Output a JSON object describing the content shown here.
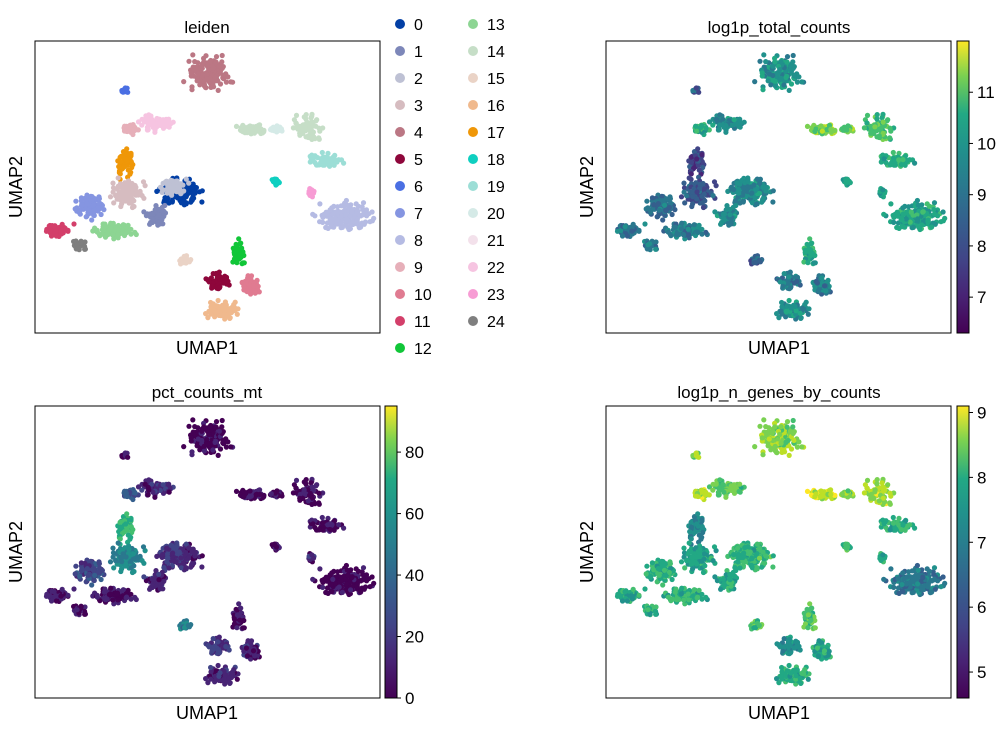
{
  "chart_data": [
    {
      "type": "scatter",
      "title": "leiden",
      "xlabel": "UMAP1",
      "ylabel": "UMAP2",
      "legend_position": "right",
      "legend": [
        {
          "label": "0",
          "color": "#023fa5"
        },
        {
          "label": "1",
          "color": "#7d87b9"
        },
        {
          "label": "2",
          "color": "#bec1d4"
        },
        {
          "label": "3",
          "color": "#d6bcc0"
        },
        {
          "label": "4",
          "color": "#bb7784"
        },
        {
          "label": "5",
          "color": "#8e063b"
        },
        {
          "label": "6",
          "color": "#4a6fe3"
        },
        {
          "label": "7",
          "color": "#8595e1"
        },
        {
          "label": "8",
          "color": "#b5bbe3"
        },
        {
          "label": "9",
          "color": "#e6afb9"
        },
        {
          "label": "10",
          "color": "#e07b91"
        },
        {
          "label": "11",
          "color": "#d33f6a"
        },
        {
          "label": "12",
          "color": "#11c638"
        },
        {
          "label": "13",
          "color": "#8dd593"
        },
        {
          "label": "14",
          "color": "#c6dec7"
        },
        {
          "label": "15",
          "color": "#ead3c6"
        },
        {
          "label": "16",
          "color": "#f0b98d"
        },
        {
          "label": "17",
          "color": "#ef9708"
        },
        {
          "label": "18",
          "color": "#0fcfc0"
        },
        {
          "label": "19",
          "color": "#9cded6"
        },
        {
          "label": "20",
          "color": "#d5eae7"
        },
        {
          "label": "21",
          "color": "#f3e1eb"
        },
        {
          "label": "22",
          "color": "#f6c4e1"
        },
        {
          "label": "23",
          "color": "#f79cd4"
        },
        {
          "label": "24",
          "color": "#7f7f7f"
        }
      ]
    },
    {
      "type": "scatter",
      "title": "log1p_total_counts",
      "xlabel": "UMAP1",
      "ylabel": "UMAP2",
      "colorbar": {
        "min": 6.3,
        "max": 12.0,
        "ticks": [
          7,
          8,
          9,
          10,
          11
        ],
        "colormap": "viridis"
      }
    },
    {
      "type": "scatter",
      "title": "pct_counts_mt",
      "xlabel": "UMAP1",
      "ylabel": "UMAP2",
      "colorbar": {
        "min": 0,
        "max": 95,
        "ticks": [
          0,
          20,
          40,
          60,
          80
        ],
        "colormap": "viridis"
      }
    },
    {
      "type": "scatter",
      "title": "log1p_n_genes_by_counts",
      "xlabel": "UMAP1",
      "ylabel": "UMAP2",
      "colorbar": {
        "min": 4.6,
        "max": 9.1,
        "ticks": [
          5,
          6,
          7,
          8,
          9
        ],
        "colormap": "viridis"
      }
    }
  ]
}
